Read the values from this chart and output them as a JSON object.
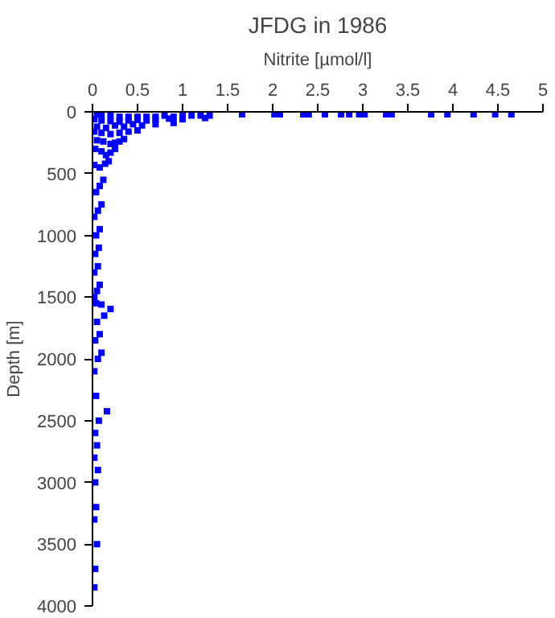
{
  "chart_data": {
    "type": "scatter",
    "title": "JFDG in 1986",
    "xlabel": "Nitrite [µmol/l]",
    "ylabel": "Depth [m]",
    "xlim": [
      0,
      5
    ],
    "ylim": [
      4000,
      0
    ],
    "xticks": [
      0,
      0.5,
      1,
      1.5,
      2,
      2.5,
      3,
      3.5,
      4,
      4.5,
      5
    ],
    "yticks": [
      0,
      500,
      1000,
      1500,
      2000,
      2500,
      3000,
      3500,
      4000
    ],
    "marker": "square",
    "series": [
      {
        "color": "#0000ff",
        "x": [
          1.66,
          2.02,
          2.08,
          2.34,
          2.4,
          2.58,
          2.76,
          2.85,
          2.96,
          3.02,
          3.26,
          3.32,
          3.76,
          3.94,
          4.23,
          4.47,
          4.65,
          1.3,
          1.2,
          1.1,
          1.0,
          0.9,
          0.8,
          0.7,
          0.6,
          0.5,
          0.4,
          0.3,
          0.2,
          0.1,
          0.05,
          1.25,
          1.0,
          0.85,
          0.7,
          0.6,
          0.5,
          0.4,
          0.3,
          0.2,
          0.1,
          0.02,
          0.9,
          0.7,
          0.55,
          0.45,
          0.35,
          0.25,
          0.15,
          0.05,
          0.5,
          0.4,
          0.3,
          0.2,
          0.1,
          0.02,
          0.35,
          0.3,
          0.25,
          0.2,
          0.12,
          0.05,
          0.25,
          0.2,
          0.15,
          0.1,
          0.03,
          0.18,
          0.14,
          0.08,
          0.02,
          0.12,
          0.08,
          0.04,
          0.1,
          0.06,
          0.02,
          0.08,
          0.04,
          0.07,
          0.03,
          0.06,
          0.02,
          0.08,
          0.05,
          0.02,
          0.1,
          0.04,
          0.2,
          0.13,
          0.05,
          0.08,
          0.03,
          0.1,
          0.06,
          0.02,
          0.16,
          0.04,
          0.07,
          0.03,
          0.05,
          0.02,
          0.06,
          0.03,
          0.04,
          0.02,
          0.05,
          0.03,
          0.02
        ],
        "values": [
          20,
          20,
          20,
          20,
          20,
          20,
          20,
          20,
          20,
          20,
          20,
          20,
          20,
          20,
          20,
          20,
          20,
          30,
          30,
          30,
          30,
          40,
          30,
          40,
          40,
          40,
          40,
          40,
          30,
          30,
          20,
          50,
          60,
          55,
          60,
          70,
          65,
          70,
          80,
          75,
          70,
          60,
          90,
          100,
          110,
          100,
          120,
          110,
          130,
          120,
          150,
          160,
          170,
          180,
          170,
          160,
          220,
          240,
          250,
          260,
          240,
          230,
          300,
          330,
          350,
          320,
          300,
          400,
          420,
          450,
          430,
          550,
          600,
          650,
          750,
          800,
          850,
          950,
          1000,
          1100,
          1150,
          1250,
          1300,
          1400,
          1450,
          1500,
          1560,
          1550,
          1596,
          1650,
          1700,
          1800,
          1850,
          1950,
          2000,
          2100,
          2424,
          2300,
          2500,
          2600,
          2700,
          2800,
          2900,
          3000,
          3200,
          3300,
          3500,
          3700,
          3850
        ]
      }
    ]
  }
}
